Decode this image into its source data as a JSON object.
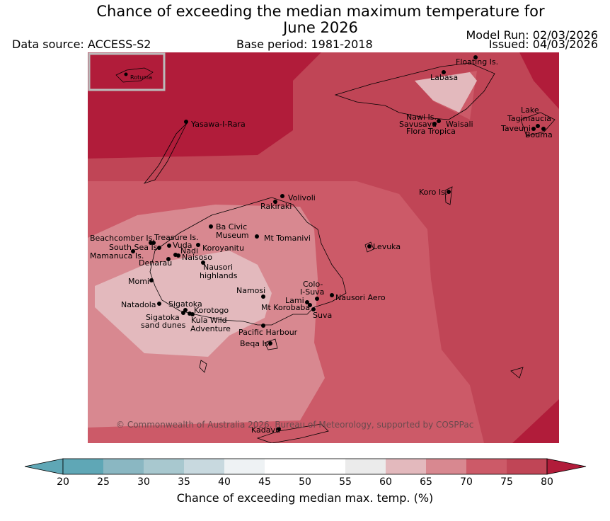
{
  "title_line1": "Chance of exceeding the median maximum temperature for",
  "title_line2": "June 2026",
  "data_source": "Data source: ACCESS-S2",
  "base_period": "Base period: 1981-2018",
  "model_run": "Model Run: 02/03/2026",
  "issued": "Issued: 04/03/2026",
  "copyright": "© Commonwealth of Australia 2026, Bureau of Meteorology, supported by COSPPac",
  "inset_label": "Rotuma",
  "places": {
    "floating": "Floating Is.",
    "labasa": "Labasa",
    "yasawa": "Yasawa-I-Rara",
    "nawi": "Nawi Is.",
    "savusavu": "Savusavu",
    "waisali": "Waisali",
    "flora": "Flora Tropica",
    "lake": "Lake",
    "tagimaucia": "Tagimaucia",
    "taveuni": "Taveuni",
    "bouma": "Bouma",
    "koro": "Koro Is.",
    "volivoli": "Volivoli",
    "rakiraki": "Rakiraki",
    "beachcomber": "Beachcomber Is.",
    "treasure": "Treasure Is.",
    "baciviclabel1": "Ba Civic",
    "baciviclabel2": "Museum",
    "tomanivi": "Mt Tomanivi",
    "levuka": "Levuka",
    "southsea": "South Sea Is.",
    "vuda": "Vuda",
    "koroyanitu": "Koroyanitu",
    "nadi": "Nadi",
    "mamanuca": "Mamanuca Is.",
    "naisoso": "Naisoso",
    "denarau": "Denarau",
    "nausori_h1": "Nausori",
    "nausori_h2": "highlands",
    "momi": "Momi",
    "namosi": "Namosi",
    "colo1": "Colo-",
    "colo2": "I-Suva",
    "lami": "Lami",
    "nausori_aero": "Nausori Aero",
    "korobaba": "Mt Korobaba",
    "suva": "Suva",
    "natadola": "Natadola",
    "sigatoka": "Sigatoka",
    "korotogo": "Korotogo",
    "sigdunes1": "Sigatoka",
    "sigdunes2": "sand dunes",
    "kula1": "Kula Wild",
    "kula2": "Adventure",
    "pacific": "Pacific Harbour",
    "beqa": "Beqa Is.",
    "kadavu": "Kadavu"
  },
  "colorbar": {
    "label": "Chance of exceeding median max. temp. (%)",
    "ticks": [
      "20",
      "25",
      "30",
      "35",
      "40",
      "45",
      "50",
      "55",
      "60",
      "65",
      "70",
      "75",
      "80"
    ],
    "colors": [
      "#5fa7b6",
      "#5fa7b6",
      "#8ab7c2",
      "#a8c8cf",
      "#c8d9df",
      "#eef2f4",
      "#ffffff",
      "#ffffff",
      "#ebebeb",
      "#e3b9bd",
      "#d88890",
      "#cc5a68",
      "#c04556",
      "#b11c3a"
    ]
  },
  "map_fill": {
    "c60": "#e3b9bd",
    "c65": "#d88890",
    "c70": "#cc5a68",
    "c75": "#c04556",
    "c80": "#b11c3a"
  }
}
